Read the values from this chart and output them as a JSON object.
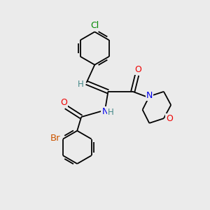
{
  "background_color": "#ebebeb",
  "bond_color": "#000000",
  "atom_colors": {
    "Cl": "#008800",
    "Br": "#cc5500",
    "N": "#0000ee",
    "O": "#ee0000",
    "H": "#448888",
    "C": "#000000"
  },
  "font_size": 8.5,
  "figsize": [
    3.0,
    3.0
  ],
  "dpi": 100
}
